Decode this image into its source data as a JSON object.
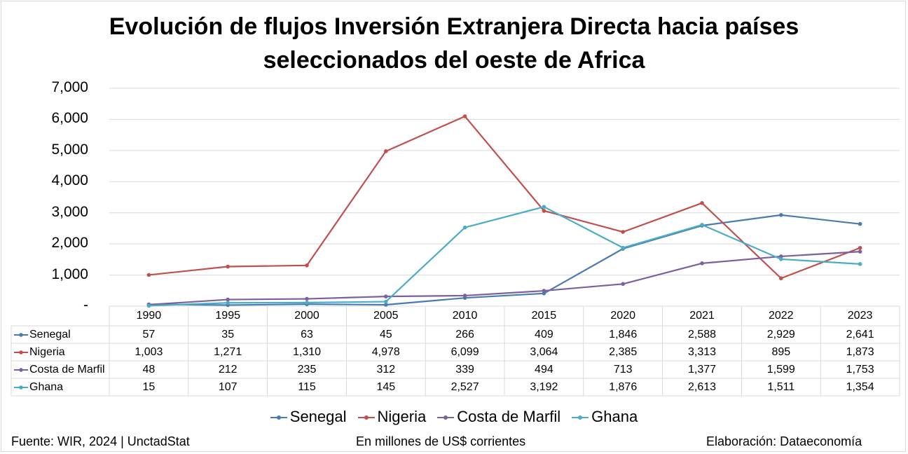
{
  "title_line1": "Evolución de flujos Inversión Extranjera Directa hacia países",
  "title_line2": "seleccionados del oeste de Africa",
  "footer": {
    "source": "Fuente: WIR, 2024 | UnctadStat",
    "units": "En millones de US$ corrientes",
    "credit": "Elaboración: Dataeconomía"
  },
  "chart_data": {
    "type": "line",
    "title": "Evolución de flujos Inversión Extranjera Directa hacia países seleccionados del oeste de Africa",
    "categories": [
      "1990",
      "1995",
      "2000",
      "2005",
      "2010",
      "2015",
      "2020",
      "2021",
      "2022",
      "2023"
    ],
    "ylim": [
      0,
      7000
    ],
    "yticks": [
      "-",
      "1,000",
      "2,000",
      "3,000",
      "4,000",
      "5,000",
      "6,000",
      "7,000"
    ],
    "grid": true,
    "legend": "bottom",
    "series": [
      {
        "name": "Senegal",
        "color": "#4a7bb0",
        "values": [
          57,
          35,
          63,
          45,
          266,
          409,
          1846,
          2588,
          2929,
          2641
        ],
        "labels": [
          "57",
          "35",
          "63",
          "45",
          "266",
          "409",
          "1,846",
          "2,588",
          "2,929",
          "2,641"
        ]
      },
      {
        "name": "Nigeria",
        "color": "#c0504d",
        "values": [
          1003,
          1271,
          1310,
          4978,
          6099,
          3064,
          2385,
          3313,
          895,
          1873
        ],
        "labels": [
          "1,003",
          "1,271",
          "1,310",
          "4,978",
          "6,099",
          "3,064",
          "2,385",
          "3,313",
          "895",
          "1,873"
        ]
      },
      {
        "name": "Costa de Marfil",
        "color": "#7d5fa0",
        "values": [
          48,
          212,
          235,
          312,
          339,
          494,
          713,
          1377,
          1599,
          1753
        ],
        "labels": [
          "48",
          "212",
          "235",
          "312",
          "339",
          "494",
          "713",
          "1,377",
          "1,599",
          "1,753"
        ]
      },
      {
        "name": "Ghana",
        "color": "#4bacc6",
        "values": [
          15,
          107,
          115,
          145,
          2527,
          3192,
          1876,
          2613,
          1511,
          1354
        ],
        "labels": [
          "15",
          "107",
          "115",
          "145",
          "2,527",
          "3,192",
          "1,876",
          "2,613",
          "1,511",
          "1,354"
        ]
      }
    ]
  }
}
